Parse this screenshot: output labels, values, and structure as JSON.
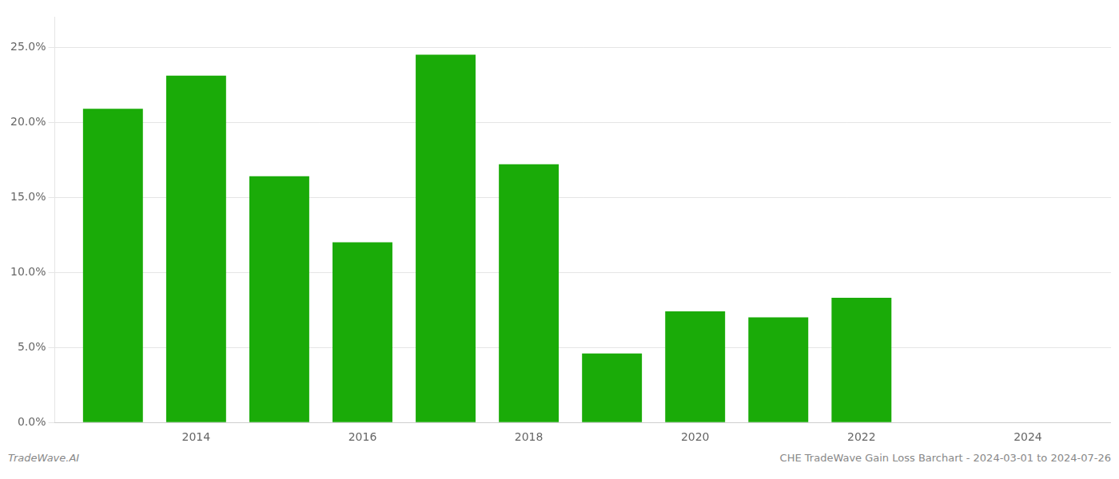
{
  "chart_data": {
    "type": "bar",
    "x": [
      2013,
      2014,
      2015,
      2016,
      2017,
      2018,
      2019,
      2020,
      2021,
      2022,
      2023
    ],
    "values": [
      0.209,
      0.231,
      0.164,
      0.12,
      0.245,
      0.172,
      0.046,
      0.074,
      0.07,
      0.083,
      0.0
    ],
    "color": "#1aab08",
    "xlim": [
      2012.3,
      2025.0
    ],
    "xticks": [
      2014,
      2016,
      2018,
      2020,
      2022,
      2024
    ],
    "ylim": [
      0,
      0.27
    ],
    "yticks": [
      {
        "value": 0.0,
        "label": "0.0%"
      },
      {
        "value": 0.05,
        "label": "5.0%"
      },
      {
        "value": 0.1,
        "label": "10.0%"
      },
      {
        "value": 0.15,
        "label": "15.0%"
      },
      {
        "value": 0.2,
        "label": "20.0%"
      },
      {
        "value": 0.25,
        "label": "25.0%"
      }
    ],
    "grid": "y",
    "annotations": [
      "TradeWave.AI",
      "CHE TradeWave Gain Loss Barchart - 2024-03-01 to 2024-07-26"
    ]
  }
}
